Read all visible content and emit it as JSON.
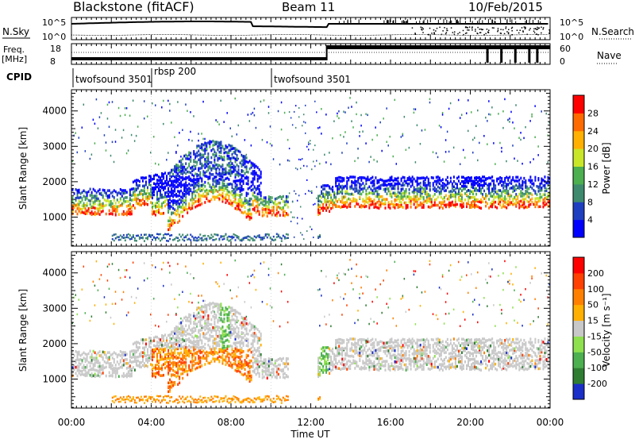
{
  "header": {
    "station": "Blackstone (fitACF)",
    "beam": "Beam 11",
    "date": "10/Feb/2015"
  },
  "top_panels": {
    "nsky_label": "N.Sky",
    "nsky_ticks": [
      "10^5",
      "10^0"
    ],
    "nsearch_label": "N.Search",
    "nsearch_ticks": [
      "10^5",
      "10^0"
    ],
    "freq_label": "Freq.",
    "freq_unit": "[MHz]",
    "freq_ticks": [
      "18",
      "8"
    ],
    "nave_label": "Nave",
    "nave_ticks": [
      "60",
      "0"
    ],
    "cpid_label": "CPID",
    "cpid_segments": [
      {
        "name": "twofsound 3501",
        "start_hour": 0
      },
      {
        "name": "rbsp 200",
        "start_hour": 4
      },
      {
        "name": "twofsound 3501",
        "start_hour": 10
      }
    ]
  },
  "chart_data": [
    {
      "type": "heatmap",
      "name": "power",
      "ylabel": "Slant Range [km]",
      "ylim": [
        180,
        4600
      ],
      "yticks": [
        1000,
        2000,
        3000,
        4000
      ],
      "xlabel": "",
      "xlim_hours": [
        0,
        24
      ],
      "colorbar": {
        "label": "Power [dB]",
        "ticks": [
          "4",
          "8",
          "12",
          "16",
          "20",
          "24",
          "28"
        ],
        "colors": [
          "#0000ff",
          "#1e3fc0",
          "#3e8a6e",
          "#4caf50",
          "#c9e629",
          "#ffb000",
          "#ff6a00",
          "#ff0000"
        ]
      }
    },
    {
      "type": "heatmap",
      "name": "velocity",
      "ylabel": "Slant Range [km]",
      "ylim": [
        180,
        4600
      ],
      "yticks": [
        1000,
        2000,
        3000,
        4000
      ],
      "xlabel": "Time UT",
      "xlim_hours": [
        0,
        24
      ],
      "xticks": [
        "00:00",
        "04:00",
        "08:00",
        "12:00",
        "16:00",
        "20:00",
        "00:00"
      ],
      "colorbar": {
        "label": "Velocity [m s⁻¹]",
        "ticks": [
          "200",
          "100",
          "50",
          "15",
          "-15",
          "-50",
          "-100",
          "-200"
        ],
        "colors": [
          "#1a2ec8",
          "#2e7d32",
          "#4caf50",
          "#8ee04e",
          "#c8c8c8",
          "#ffb000",
          "#ff8000",
          "#ff4000",
          "#ff0000"
        ]
      }
    }
  ]
}
